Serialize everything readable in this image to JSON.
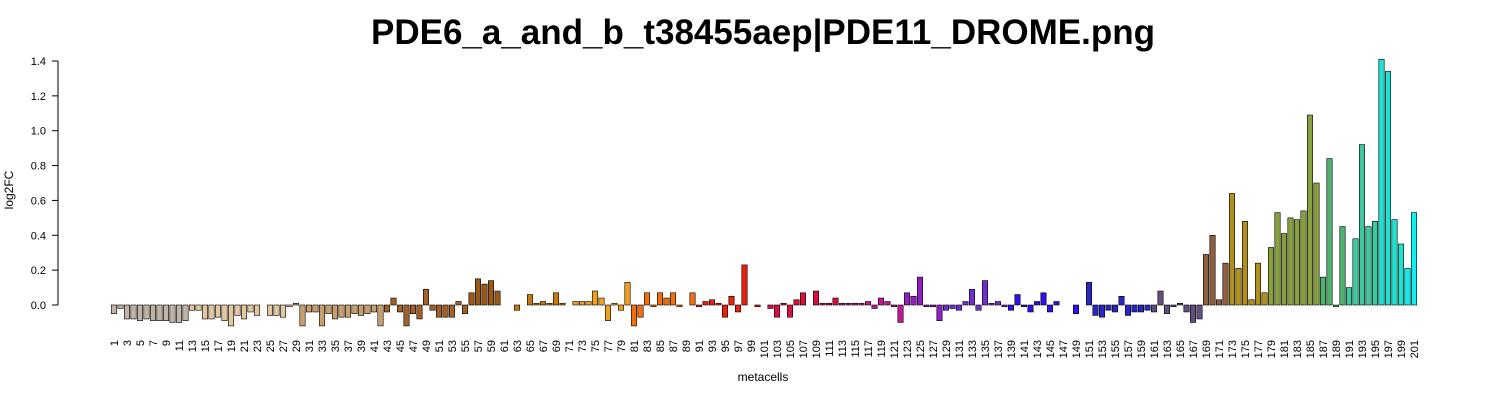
{
  "chart_data": {
    "type": "bar",
    "title": "PDE6_a_and_b_t38455aep|PDE11_DROME.png",
    "x_label": "metacells",
    "y_label": "log2FC",
    "categories": [
      1,
      null,
      3,
      null,
      5,
      null,
      7,
      null,
      9,
      null,
      11,
      null,
      13,
      null,
      15,
      null,
      17,
      null,
      19,
      null,
      21,
      null,
      23,
      null,
      25,
      null,
      27,
      null,
      29,
      null,
      31,
      null,
      33,
      null,
      35,
      null,
      37,
      null,
      39,
      null,
      41,
      null,
      43,
      null,
      45,
      null,
      47,
      null,
      49,
      null,
      51,
      null,
      53,
      null,
      55,
      null,
      57,
      null,
      59,
      null,
      61,
      null,
      63,
      null,
      65,
      null,
      67,
      null,
      69,
      null,
      71,
      null,
      73,
      null,
      75,
      null,
      77,
      null,
      79,
      null,
      81,
      null,
      83,
      null,
      85,
      null,
      87,
      null,
      89,
      null,
      91,
      null,
      93,
      null,
      95,
      null,
      97,
      null,
      99,
      null,
      101,
      null,
      103,
      null,
      105,
      null,
      107,
      null,
      109,
      null,
      111,
      null,
      113,
      null,
      115,
      null,
      117,
      null,
      119,
      null,
      121,
      null,
      123,
      null,
      125,
      null,
      127,
      null,
      129,
      null,
      131,
      null,
      133,
      null,
      135,
      null,
      137,
      null,
      139,
      null,
      141,
      null,
      143,
      null,
      145,
      null,
      147,
      null,
      149,
      null,
      151,
      null,
      153,
      null,
      155,
      null,
      157,
      null,
      159,
      null,
      161,
      null,
      163,
      null,
      165,
      null,
      167,
      null,
      169,
      null,
      171,
      null,
      173,
      null,
      175,
      null,
      177,
      null,
      179,
      null,
      181,
      null,
      183,
      null,
      185,
      null,
      187,
      null,
      189,
      null,
      191,
      null,
      193,
      null,
      195,
      null,
      197,
      null,
      199,
      null,
      201
    ],
    "values": [
      -0.05,
      -0.02,
      -0.08,
      -0.08,
      -0.09,
      -0.08,
      -0.09,
      -0.09,
      -0.09,
      -0.1,
      -0.1,
      -0.09,
      -0.03,
      -0.03,
      -0.08,
      -0.08,
      -0.07,
      -0.09,
      -0.12,
      -0.06,
      -0.08,
      -0.04,
      -0.06,
      0,
      -0.06,
      -0.06,
      -0.07,
      -0.01,
      0.01,
      -0.12,
      -0.04,
      -0.04,
      -0.12,
      -0.05,
      -0.08,
      -0.07,
      -0.07,
      -0.05,
      -0.06,
      -0.05,
      -0.04,
      -0.12,
      -0.04,
      0.04,
      -0.04,
      -0.12,
      -0.05,
      -0.08,
      0.09,
      -0.03,
      -0.07,
      -0.07,
      -0.07,
      0.02,
      -0.05,
      0.07,
      0.15,
      0.12,
      0.14,
      0.08,
      0,
      0,
      -0.03,
      0,
      0.06,
      0.01,
      0.02,
      0.01,
      0.07,
      0.01,
      0,
      0.02,
      0.02,
      0.02,
      0.08,
      0.04,
      -0.09,
      0.01,
      -0.03,
      0.13,
      -0.12,
      -0.07,
      0.07,
      -0.01,
      0.07,
      0.04,
      0.07,
      -0.01,
      0,
      0.07,
      -0.01,
      0.02,
      0.03,
      0.01,
      -0.07,
      0.05,
      -0.04,
      0.23,
      0,
      -0.01,
      0,
      -0.02,
      -0.07,
      0.01,
      -0.07,
      0.03,
      0.07,
      0,
      0.08,
      0.01,
      0.01,
      0.04,
      0.01,
      0.01,
      0.01,
      0.01,
      0.02,
      -0.02,
      0.04,
      0.02,
      -0.01,
      -0.1,
      0.07,
      0.05,
      0.16,
      -0.01,
      -0.01,
      -0.09,
      -0.03,
      -0.02,
      -0.03,
      0.02,
      0.09,
      -0.03,
      0.14,
      0.01,
      0.02,
      -0.01,
      -0.03,
      0.06,
      -0.01,
      -0.04,
      0.02,
      0.07,
      -0.04,
      0.02,
      0,
      0,
      -0.05,
      0,
      0.13,
      -0.06,
      -0.07,
      -0.03,
      -0.04,
      0.05,
      -0.06,
      -0.04,
      -0.04,
      -0.03,
      -0.04,
      0.08,
      -0.05,
      -0.01,
      0.01,
      -0.04,
      -0.1,
      -0.08,
      0.29,
      0.4,
      0.03,
      0.24,
      0.64,
      0.21,
      0.48,
      0.03,
      0.24,
      0.07,
      0.33,
      0.53,
      0.41,
      0.5,
      0.49,
      0.54,
      1.09,
      0.7,
      0.16,
      0.84,
      -0.01,
      0.45,
      0.1,
      0.38,
      0.92,
      0.45,
      0.48,
      1.41,
      1.34,
      0.49,
      0.35,
      0.21,
      0.53
    ],
    "colors": [
      "#c0b4a8",
      "#c0b4a8",
      "#c0b4a8",
      "#c0b4a8",
      "#c0b4a8",
      "#c0b4a8",
      "#c0b4a8",
      "#c0b4a8",
      "#c0b4a8",
      "#c0b4a8",
      "#c0b4a8",
      "#c0b4a8",
      "#e2c8a0",
      "#e2c8a0",
      "#e2c8a0",
      "#e2c8a0",
      "#e2c8a0",
      "#e2c8a0",
      "#e2c8a0",
      "#e2c8a0",
      "#e2c8a0",
      "#e2c8a0",
      "#e2c8a0",
      "#e2c8a0",
      "#e2c8a0",
      "#e2c8a0",
      "#e2c8a0",
      "#e2c8a0",
      "#c8a070",
      "#c8a070",
      "#c8a070",
      "#c8a070",
      "#c8a070",
      "#c8a070",
      "#c8a070",
      "#c8a070",
      "#c8a070",
      "#c8a070",
      "#c8a070",
      "#c8a070",
      "#c8a070",
      "#c8a070",
      "#a0602a",
      "#a0602a",
      "#a0602a",
      "#a0602a",
      "#a0602a",
      "#a0602a",
      "#a0602a",
      "#a0602a",
      "#a0602a",
      "#a0602a",
      "#a0602a",
      "#a0602a",
      "#a0602a",
      "#9a5818",
      "#9a5818",
      "#9a5818",
      "#9a5818",
      "#9a5818",
      "#9a5818",
      "#9a5818",
      "#c87810",
      "#c87810",
      "#c87810",
      "#c87810",
      "#c87810",
      "#c87810",
      "#c87810",
      "#c87810",
      "#f0a020",
      "#f0a020",
      "#f0a020",
      "#f0a020",
      "#f0a020",
      "#f0a020",
      "#f0a020",
      "#f0a020",
      "#f0a020",
      "#f0a020",
      "#f07010",
      "#f07010",
      "#f07010",
      "#f07010",
      "#f07010",
      "#f07010",
      "#f07010",
      "#f07010",
      "#f07010",
      "#f07010",
      "#e82010",
      "#e82010",
      "#e82010",
      "#e82010",
      "#e82010",
      "#e82010",
      "#e82010",
      "#e82010",
      "#e82010",
      "#e82010",
      "#d81040",
      "#d81040",
      "#d81040",
      "#d81040",
      "#d81040",
      "#d81040",
      "#d81040",
      "#d81040",
      "#d81040",
      "#d81040",
      "#d81040",
      "#d81040",
      "#c01890",
      "#c01890",
      "#c01890",
      "#c01890",
      "#c01890",
      "#c01890",
      "#c01890",
      "#c01890",
      "#c01890",
      "#c01890",
      "#9020c0",
      "#9020c0",
      "#9020c0",
      "#9020c0",
      "#9020c0",
      "#9020c0",
      "#7030d0",
      "#7030d0",
      "#7030d0",
      "#7030d0",
      "#7030d0",
      "#7030d0",
      "#7030d0",
      "#7030d0",
      "#7030d0",
      "#7030d0",
      "#3010e8",
      "#3010e8",
      "#3010e8",
      "#3010e8",
      "#3010e8",
      "#3010e8",
      "#3010e8",
      "#3010e8",
      "#3010e8",
      "#3010e8",
      "#3010e8",
      "#3010e8",
      "#2828c0",
      "#2828c0",
      "#2828c0",
      "#2828c0",
      "#2828c0",
      "#2828c0",
      "#2828c0",
      "#2828c0",
      "#2828c0",
      "#2828c0",
      "#605080",
      "#605080",
      "#605080",
      "#605080",
      "#605080",
      "#605080",
      "#605080",
      "#605080",
      "#8c6040",
      "#8c6040",
      "#8c6040",
      "#8c6040",
      "#b09020",
      "#b09020",
      "#b09020",
      "#b09020",
      "#b09020",
      "#b09020",
      "#88a040",
      "#88a040",
      "#88a040",
      "#88a040",
      "#88a040",
      "#88a040",
      "#88a040",
      "#88a040",
      "#50b070",
      "#50b070",
      "#50b070",
      "#50b070",
      "#40c8a0",
      "#40c8a0",
      "#40c8a0",
      "#40c8a0",
      "#40c8a0",
      "#20e0d0",
      "#20e0d0",
      "#20e0d0",
      "#20e0d0",
      "#10f0f0",
      "#10f0f0"
    ],
    "ylim": [
      -0.14,
      1.41
    ],
    "yticks": [
      {
        "value": 0,
        "label": "0.0"
      },
      {
        "value": 0.2,
        "label": "0.2"
      },
      {
        "value": 0.4,
        "label": "0.4"
      },
      {
        "value": 0.6,
        "label": "0.6"
      },
      {
        "value": 0.8,
        "label": "0.8"
      },
      {
        "value": 1.0,
        "label": "1.0"
      },
      {
        "value": 1.2,
        "label": "1.2"
      },
      {
        "value": 1.4,
        "label": "1.4"
      }
    ]
  }
}
